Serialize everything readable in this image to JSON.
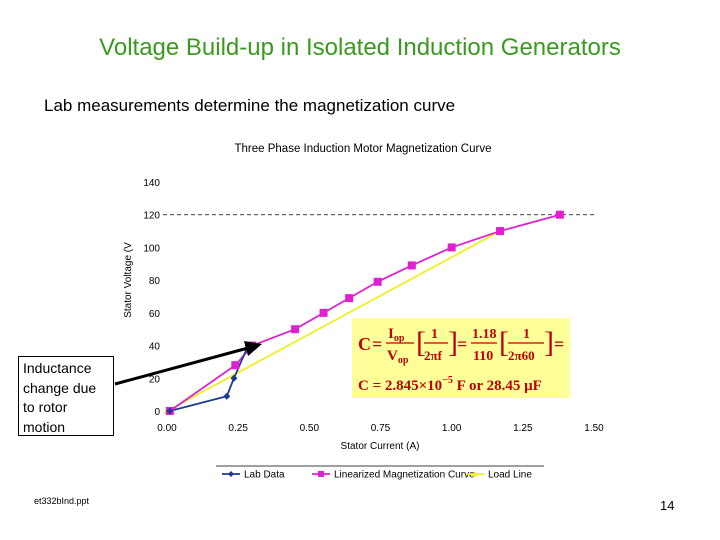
{
  "slide": {
    "title": "Voltage Build-up in Isolated Induction Generators",
    "subtitle": "Lab measurements determine the magnetization curve",
    "callout": "Inductance change due to rotor motion",
    "footer": "et332bInd.ppt",
    "page_number": "14"
  },
  "formula": {
    "c_label": "C",
    "i_op": "I",
    "i_op_sub": "op",
    "v_op": "V",
    "v_op_sub": "op",
    "one": "1",
    "two_pi_f": "2πf",
    "num": "1.18",
    "den": "110",
    "two_pi_60": "2π60",
    "result": "C = 2.845×10",
    "exponent": "−5",
    "result_tail": " F or 28.45 μF",
    "bg_color": "#ffff99"
  },
  "chart_data": {
    "type": "line",
    "title": "Three Phase Induction Motor Magnetization Curve",
    "xlabel": "Stator Current (A)",
    "ylabel": "Stator Voltage (V",
    "xlim": [
      0,
      1.5
    ],
    "ylim": [
      0,
      140
    ],
    "x_ticks": [
      "0.00",
      "0.25",
      "0.50",
      "0.75",
      "1.00",
      "1.25",
      "1.50"
    ],
    "y_ticks": [
      "0",
      "20",
      "40",
      "60",
      "80",
      "100",
      "120",
      "140"
    ],
    "grid": false,
    "reference_line_y": 120,
    "legend_position": "bottom",
    "series": [
      {
        "name": "Lab Data",
        "color": "#1f3a93",
        "marker": "diamond",
        "points": [
          [
            0.01,
            0
          ],
          [
            0.21,
            9
          ],
          [
            0.235,
            20
          ],
          [
            0.285,
            40
          ]
        ]
      },
      {
        "name": "Linearized Magnetization Curve",
        "color": "#e020d0",
        "marker": "square",
        "points": [
          [
            0.01,
            0
          ],
          [
            0.24,
            28
          ],
          [
            0.3,
            40
          ],
          [
            0.45,
            50
          ],
          [
            0.55,
            60
          ],
          [
            0.64,
            69
          ],
          [
            0.74,
            79
          ],
          [
            0.86,
            89
          ],
          [
            1.0,
            100
          ],
          [
            1.17,
            110
          ],
          [
            1.38,
            120
          ]
        ]
      },
      {
        "name": "Load Line",
        "color": "#f0f020",
        "marker": "triangle",
        "points": [
          [
            0.0,
            0
          ],
          [
            1.17,
            110
          ]
        ]
      }
    ]
  }
}
